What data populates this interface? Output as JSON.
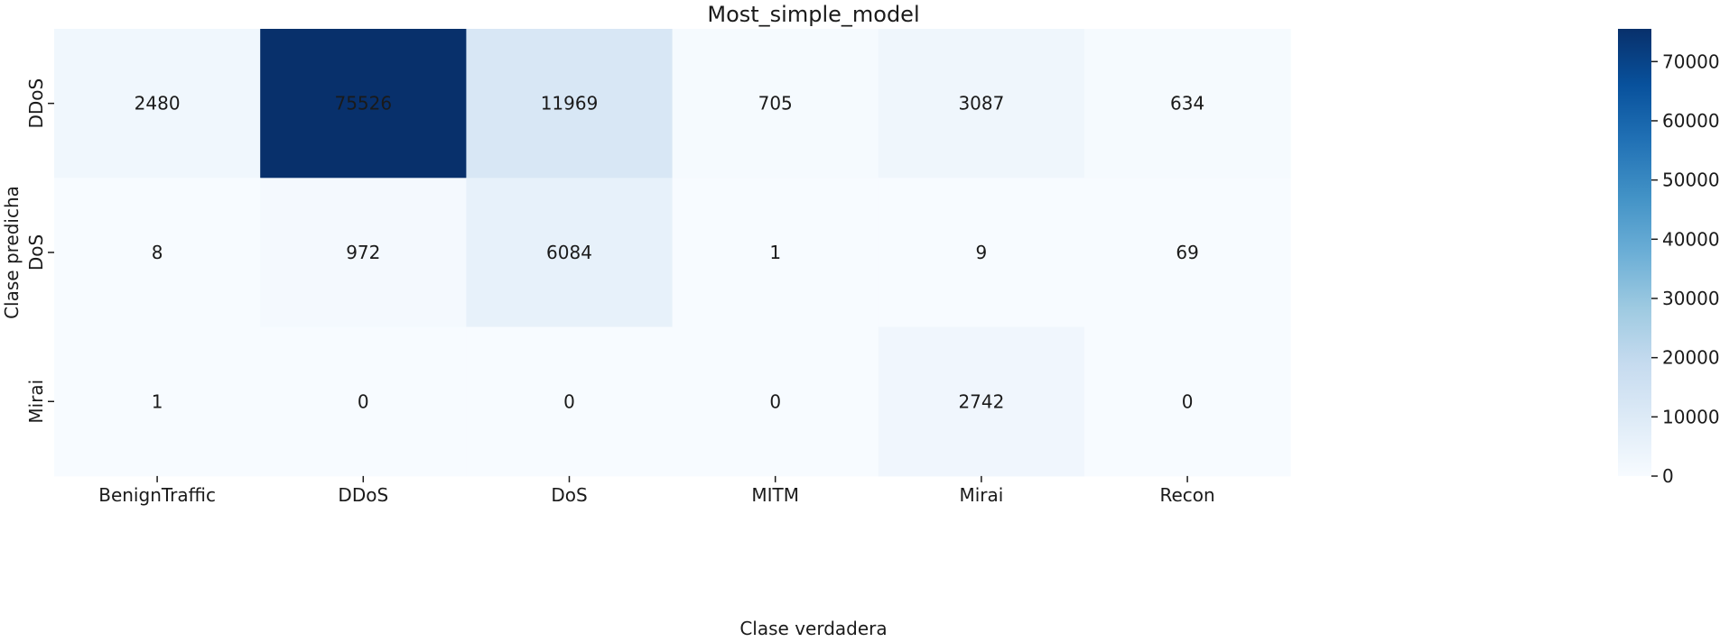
{
  "chart_data": {
    "type": "heatmap",
    "title": "Most_simple_model",
    "xlabel": "Clase verdadera",
    "ylabel": "Clase predicha",
    "x_categories": [
      "BenignTraffic",
      "DDoS",
      "DoS",
      "MITM",
      "Mirai",
      "Recon"
    ],
    "y_categories": [
      "DDoS",
      "DoS",
      "Mirai"
    ],
    "values": [
      [
        2480,
        75526,
        11969,
        705,
        3087,
        634
      ],
      [
        8,
        972,
        6084,
        1,
        9,
        69
      ],
      [
        1,
        0,
        0,
        0,
        2742,
        0
      ]
    ],
    "colorbar": {
      "min": 0,
      "max": 75526,
      "ticks": [
        0,
        10000,
        20000,
        30000,
        40000,
        50000,
        60000,
        70000
      ],
      "colormap": "Blues",
      "color_low": "#f7fbff",
      "color_high": "#08306b"
    }
  }
}
